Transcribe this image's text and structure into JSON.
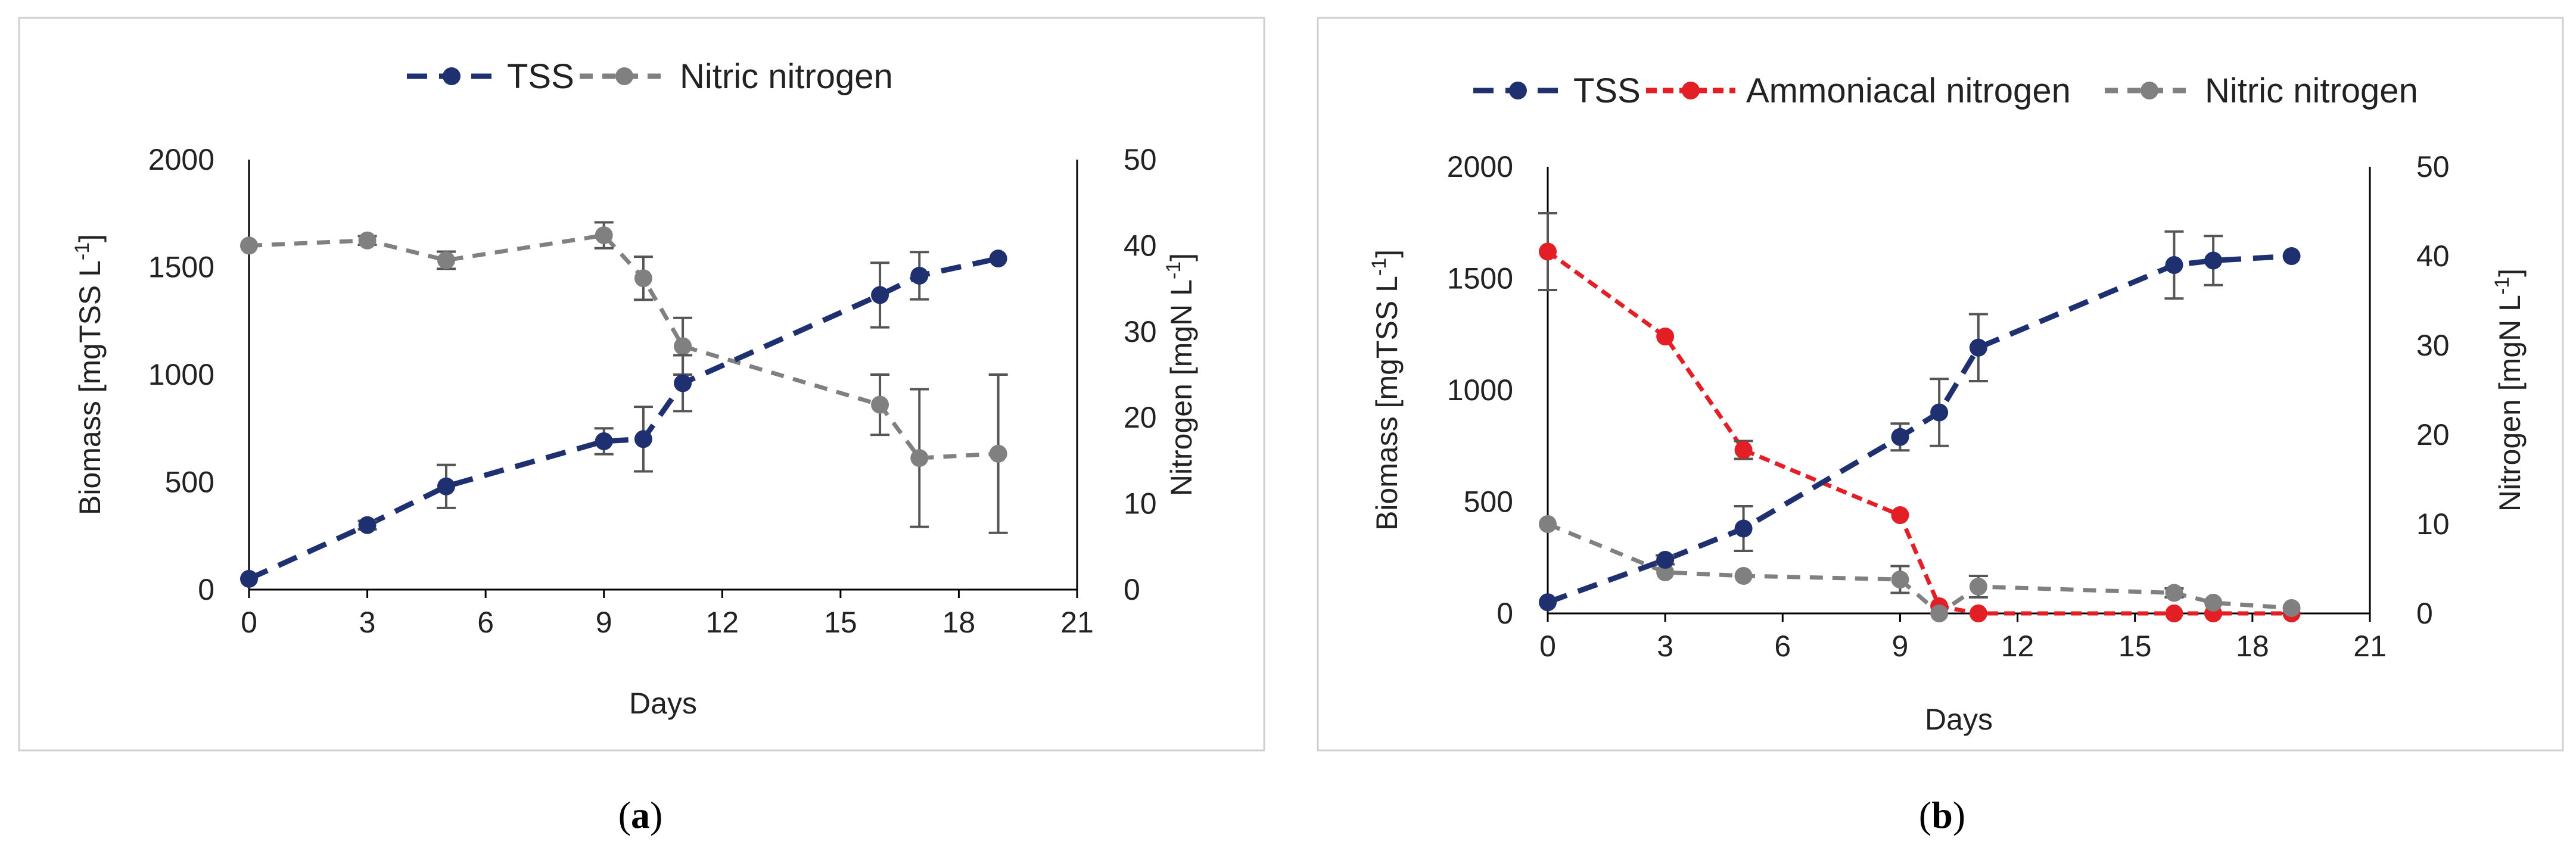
{
  "chart_data": [
    {
      "type": "line",
      "panel_label": "(a)",
      "xlabel": "Days",
      "ylabel_left": "Biomass [mgTSS L-1]",
      "ylabel_right": "Nitrogen [mgN L-1]",
      "xlim": [
        0,
        21
      ],
      "xticks": [
        0,
        3,
        6,
        9,
        12,
        15,
        18,
        21
      ],
      "ylim_left": [
        0,
        2000
      ],
      "yticks_left": [
        0,
        500,
        1000,
        1500,
        2000
      ],
      "ylim_right": [
        0,
        50
      ],
      "yticks_right": [
        0,
        10,
        20,
        30,
        40,
        50
      ],
      "legend_position": "top",
      "grid": false,
      "series": [
        {
          "name": "TSS",
          "axis": "left",
          "color": "#1f3070",
          "dash": "long-dash",
          "x": [
            0,
            3,
            5,
            9,
            10,
            11,
            16,
            17,
            19
          ],
          "y": [
            50,
            300,
            480,
            690,
            700,
            960,
            1370,
            1460,
            1540
          ],
          "err": [
            0,
            20,
            100,
            60,
            150,
            130,
            150,
            110,
            0
          ]
        },
        {
          "name": "Nitric nitrogen",
          "axis": "right",
          "color": "#808080",
          "dash": "dash",
          "x": [
            0,
            3,
            5,
            9,
            10,
            11,
            16,
            17,
            19
          ],
          "y": [
            40,
            40.6,
            38.3,
            41.2,
            36.2,
            28.3,
            21.5,
            15.3,
            15.8
          ],
          "err": [
            0,
            0.5,
            1.0,
            1.5,
            2.5,
            3.3,
            3.5,
            8.0,
            9.2
          ]
        }
      ]
    },
    {
      "type": "line",
      "panel_label": "(b)",
      "xlabel": "Days",
      "ylabel_left": "Biomass [mgTSS L-1]",
      "ylabel_right": "Nitrogen [mgN L-1]",
      "xlim": [
        0,
        21
      ],
      "xticks": [
        0,
        3,
        6,
        9,
        12,
        15,
        18,
        21
      ],
      "ylim_left": [
        0,
        2000
      ],
      "yticks_left": [
        0,
        500,
        1000,
        1500,
        2000
      ],
      "ylim_right": [
        0,
        50
      ],
      "yticks_right": [
        0,
        10,
        20,
        30,
        40,
        50
      ],
      "legend_position": "top",
      "grid": false,
      "series": [
        {
          "name": "TSS",
          "axis": "left",
          "color": "#1f3070",
          "dash": "long-dash",
          "x": [
            0,
            3,
            5,
            9,
            10,
            11,
            16,
            17,
            19
          ],
          "y": [
            50,
            240,
            380,
            790,
            900,
            1190,
            1560,
            1580,
            1600
          ],
          "err": [
            0,
            20,
            100,
            60,
            150,
            150,
            150,
            110,
            0
          ]
        },
        {
          "name": "Ammoniacal nitrogen",
          "axis": "right",
          "color": "#e31e24",
          "dash": "short-dash",
          "x": [
            0,
            3,
            5,
            9,
            10,
            11,
            16,
            17,
            19
          ],
          "y": [
            40.5,
            31,
            18.3,
            11,
            0.8,
            0,
            0,
            0,
            0
          ],
          "err": [
            4.3,
            0,
            1.0,
            0,
            0,
            0,
            0,
            0,
            0
          ]
        },
        {
          "name": "Nitric nitrogen",
          "axis": "right",
          "color": "#808080",
          "dash": "dash",
          "x": [
            0,
            3,
            5,
            9,
            10,
            11,
            16,
            17,
            19
          ],
          "y": [
            10,
            4.6,
            4.2,
            3.8,
            0,
            3,
            2.3,
            1.2,
            0.6
          ],
          "err": [
            0,
            0,
            0,
            1.5,
            0,
            1.2,
            0.5,
            0,
            0
          ]
        }
      ]
    }
  ]
}
